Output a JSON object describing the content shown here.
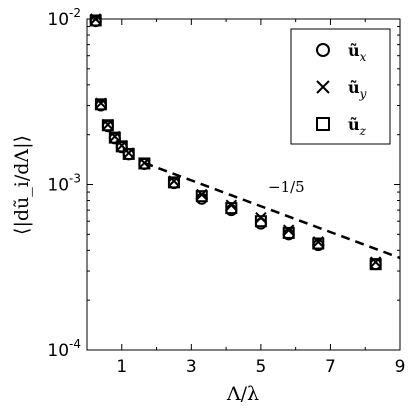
{
  "chart_data": {
    "type": "scatter",
    "xlabel": "Λ/λ",
    "ylabel": "⟨|dũ_i/dΛ|⟩",
    "xlim": [
      0,
      9
    ],
    "ylim": [
      0.0001,
      0.01
    ],
    "yscale": "log",
    "grid": false,
    "legend_position": "top-right",
    "xticks": [
      1,
      3,
      5,
      7,
      9
    ],
    "xtick_labels": [
      "1",
      "3",
      "5",
      "7",
      "9"
    ],
    "yticks": [
      0.0001,
      0.001,
      0.01
    ],
    "ytick_labels": [
      {
        "base": "10",
        "exp": "-4"
      },
      {
        "base": "10",
        "exp": "-3"
      },
      {
        "base": "10",
        "exp": "-2"
      }
    ],
    "series": [
      {
        "name": "ũ_x",
        "marker": "circle",
        "x": [
          0.25,
          0.4,
          0.6,
          0.8,
          1.0,
          1.2,
          1.65,
          2.5,
          3.3,
          4.15,
          5.0,
          5.8,
          6.65,
          8.3
        ],
        "y": [
          0.0097,
          0.003,
          0.00225,
          0.0019,
          0.00168,
          0.00152,
          0.00133,
          0.00102,
          0.00082,
          0.0007,
          0.00058,
          0.0005,
          0.00043,
          0.00033
        ]
      },
      {
        "name": "ũ_y",
        "marker": "x",
        "x": [
          0.25,
          0.4,
          0.6,
          0.8,
          1.0,
          1.2,
          1.65,
          2.5,
          3.3,
          4.15,
          5.0,
          5.8,
          6.65,
          8.3
        ],
        "y": [
          0.01,
          0.0031,
          0.0023,
          0.00195,
          0.00172,
          0.00155,
          0.00135,
          0.00105,
          0.00087,
          0.00075,
          0.00063,
          0.00053,
          0.00045,
          0.00034
        ]
      },
      {
        "name": "ũ_z",
        "marker": "square",
        "x": [
          0.25,
          0.4,
          0.6,
          0.8,
          1.0,
          1.2,
          1.65,
          2.5,
          3.3,
          4.15,
          5.0,
          5.8,
          6.65,
          8.3
        ],
        "y": [
          0.0098,
          0.00305,
          0.00228,
          0.00192,
          0.0017,
          0.00153,
          0.00134,
          0.00103,
          0.00085,
          0.00072,
          0.0006,
          0.00051,
          0.00044,
          0.00033
        ]
      }
    ],
    "reference_line": {
      "style": "dashed",
      "x": [
        1.65,
        9
      ],
      "y": [
        0.00135,
        0.00036
      ],
      "label": "−1/5"
    }
  }
}
